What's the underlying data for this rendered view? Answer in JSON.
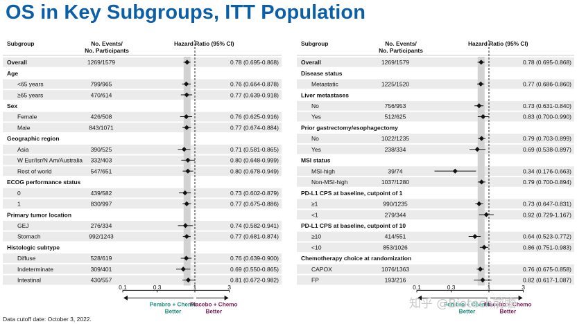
{
  "title": "OS in Key Subgroups, ITT Population",
  "footnote": "Data cutoff date: October 3, 2022.",
  "watermark": "知乎 @Biotech前瞻",
  "colors": {
    "title": "#0b5fa8",
    "favors_left": "#1a8c7a",
    "favors_right": "#7a1e57",
    "row_shade": "#ebebeb",
    "axis_band": "#d2d2d2",
    "marker": "#111111"
  },
  "chart_data": [
    {
      "type": "forest",
      "headers": {
        "subgroup": "Subgroup",
        "events": "No. Events/\nNo. Participants",
        "hr": "Hazard Ratio (95% CI)"
      },
      "xaxis": {
        "scale": "log",
        "xlim": [
          0.1,
          3
        ],
        "ticks": [
          "0.1",
          "0.3",
          "1",
          "3"
        ],
        "tick_values": [
          0.1,
          0.3,
          1,
          3
        ],
        "reference": 1,
        "overall_hr": 0.78
      },
      "favors_left": "Pembro + Chemo\nBetter",
      "favors_right": "Placebo + Chemo\nBetter",
      "rows": [
        {
          "kind": "data",
          "label": "Overall",
          "bold": true,
          "events": "1269/1579",
          "hr": 0.78,
          "lo": 0.695,
          "hi": 0.868,
          "text": "0.78 (0.695-0.868)"
        },
        {
          "kind": "header",
          "label": "Age"
        },
        {
          "kind": "data",
          "label": "<65 years",
          "events": "799/965",
          "hr": 0.76,
          "lo": 0.664,
          "hi": 0.878,
          "text": "0.76 (0.664-0.878)"
        },
        {
          "kind": "data",
          "label": "≥65 years",
          "events": "470/614",
          "hr": 0.77,
          "lo": 0.639,
          "hi": 0.918,
          "text": "0.77 (0.639-0.918)"
        },
        {
          "kind": "header",
          "label": "Sex"
        },
        {
          "kind": "data",
          "label": "Female",
          "events": "426/508",
          "hr": 0.76,
          "lo": 0.625,
          "hi": 0.916,
          "text": "0.76 (0.625-0.916)"
        },
        {
          "kind": "data",
          "label": "Male",
          "events": "843/1071",
          "hr": 0.77,
          "lo": 0.674,
          "hi": 0.884,
          "text": "0.77 (0.674-0.884)"
        },
        {
          "kind": "header",
          "label": "Geographic region"
        },
        {
          "kind": "data",
          "label": "Asia",
          "events": "390/525",
          "hr": 0.71,
          "lo": 0.581,
          "hi": 0.865,
          "text": "0.71 (0.581-0.865)"
        },
        {
          "kind": "data",
          "label": "W Eur/Isr/N Am/Australia",
          "events": "332/403",
          "hr": 0.8,
          "lo": 0.648,
          "hi": 0.999,
          "text": "0.80 (0.648-0.999)"
        },
        {
          "kind": "data",
          "label": "Rest of world",
          "events": "547/651",
          "hr": 0.8,
          "lo": 0.678,
          "hi": 0.949,
          "text": "0.80 (0.678-0.949)"
        },
        {
          "kind": "header",
          "label": "ECOG performance status"
        },
        {
          "kind": "data",
          "label": "0",
          "events": "439/582",
          "hr": 0.73,
          "lo": 0.602,
          "hi": 0.879,
          "text": "0.73 (0.602-0.879)"
        },
        {
          "kind": "data",
          "label": "1",
          "events": "830/997",
          "hr": 0.77,
          "lo": 0.675,
          "hi": 0.886,
          "text": "0.77 (0.675-0.886)"
        },
        {
          "kind": "header",
          "label": "Primary tumor location"
        },
        {
          "kind": "data",
          "label": "GEJ",
          "events": "276/334",
          "hr": 0.74,
          "lo": 0.582,
          "hi": 0.941,
          "text": "0.74 (0.582-0.941)"
        },
        {
          "kind": "data",
          "label": "Stomach",
          "events": "992/1243",
          "hr": 0.77,
          "lo": 0.681,
          "hi": 0.874,
          "text": "0.77 (0.681-0.874)"
        },
        {
          "kind": "header",
          "label": "Histologic subtype"
        },
        {
          "kind": "data",
          "label": "Diffuse",
          "events": "528/619",
          "hr": 0.76,
          "lo": 0.639,
          "hi": 0.9,
          "text": "0.76 (0.639-0.900)"
        },
        {
          "kind": "data",
          "label": "Indeterminate",
          "events": "309/401",
          "hr": 0.69,
          "lo": 0.55,
          "hi": 0.865,
          "text": "0.69 (0.550-0.865)"
        },
        {
          "kind": "data",
          "label": "Intestinal",
          "events": "430/557",
          "hr": 0.81,
          "lo": 0.672,
          "hi": 0.982,
          "text": "0.81 (0.672-0.982)"
        }
      ]
    },
    {
      "type": "forest",
      "headers": {
        "subgroup": "Subgroup",
        "events": "No. Events/\nNo. Participants",
        "hr": "Hazard Ratio (95% CI)"
      },
      "xaxis": {
        "scale": "log",
        "xlim": [
          0.1,
          3
        ],
        "ticks": [
          "0.1",
          "0.3",
          "1",
          "3"
        ],
        "tick_values": [
          0.1,
          0.3,
          1,
          3
        ],
        "reference": 1,
        "overall_hr": 0.78
      },
      "favors_left": "Pembro + Chemo\nBetter",
      "favors_right": "Placebo + Chemo\nBetter",
      "rows": [
        {
          "kind": "data",
          "label": "Overall",
          "bold": true,
          "events": "1269/1579",
          "hr": 0.78,
          "lo": 0.695,
          "hi": 0.868,
          "text": "0.78 (0.695-0.868)"
        },
        {
          "kind": "header",
          "label": "Disease status"
        },
        {
          "kind": "data",
          "label": "Metastatic",
          "events": "1225/1520",
          "hr": 0.77,
          "lo": 0.686,
          "hi": 0.86,
          "text": "0.77 (0.686-0.860)"
        },
        {
          "kind": "header",
          "label": "Liver metastases"
        },
        {
          "kind": "data",
          "label": "No",
          "events": "756/953",
          "hr": 0.73,
          "lo": 0.631,
          "hi": 0.84,
          "text": "0.73 (0.631-0.840)"
        },
        {
          "kind": "data",
          "label": "Yes",
          "events": "512/625",
          "hr": 0.83,
          "lo": 0.7,
          "hi": 0.99,
          "text": "0.83 (0.700-0.990)"
        },
        {
          "kind": "header",
          "label": "Prior gastrectomy/esophagectomy"
        },
        {
          "kind": "data",
          "label": "No",
          "events": "1022/1235",
          "hr": 0.79,
          "lo": 0.703,
          "hi": 0.899,
          "text": "0.79 (0.703-0.899)"
        },
        {
          "kind": "data",
          "label": "Yes",
          "events": "238/334",
          "hr": 0.69,
          "lo": 0.538,
          "hi": 0.897,
          "text": "0.69 (0.538-0.897)"
        },
        {
          "kind": "header",
          "label": "MSI status"
        },
        {
          "kind": "data",
          "label": "MSI-high",
          "events": "39/74",
          "hr": 0.34,
          "lo": 0.176,
          "hi": 0.663,
          "text": "0.34 (0.176-0.663)"
        },
        {
          "kind": "data",
          "label": "Non-MSI-high",
          "events": "1037/1280",
          "hr": 0.79,
          "lo": 0.7,
          "hi": 0.894,
          "text": "0.79 (0.700-0.894)"
        },
        {
          "kind": "header",
          "label": "PD-L1 CPS at baseline, cutpoint of 1"
        },
        {
          "kind": "data",
          "label": "≥1",
          "events": "990/1235",
          "hr": 0.73,
          "lo": 0.647,
          "hi": 0.831,
          "text": "0.73 (0.647-0.831)"
        },
        {
          "kind": "data",
          "label": "<1",
          "events": "279/344",
          "hr": 0.92,
          "lo": 0.729,
          "hi": 1.167,
          "text": "0.92 (0.729-1.167)"
        },
        {
          "kind": "header",
          "label": "PD-L1 CPS at baseline, cutpoint of 10"
        },
        {
          "kind": "data",
          "label": "≥10",
          "events": "414/551",
          "hr": 0.64,
          "lo": 0.523,
          "hi": 0.772,
          "text": "0.64 (0.523-0.772)"
        },
        {
          "kind": "data",
          "label": "<10",
          "events": "853/1026",
          "hr": 0.86,
          "lo": 0.751,
          "hi": 0.983,
          "text": "0.86 (0.751-0.983)"
        },
        {
          "kind": "header",
          "label": "Chemotherapy choice at randomization"
        },
        {
          "kind": "data",
          "label": "CAPOX",
          "events": "1076/1363",
          "hr": 0.76,
          "lo": 0.675,
          "hi": 0.858,
          "text": "0.76 (0.675-0.858)"
        },
        {
          "kind": "data",
          "label": "FP",
          "events": "193/216",
          "hr": 0.82,
          "lo": 0.617,
          "hi": 1.087,
          "text": "0.82 (0.617-1.087)"
        }
      ]
    }
  ]
}
